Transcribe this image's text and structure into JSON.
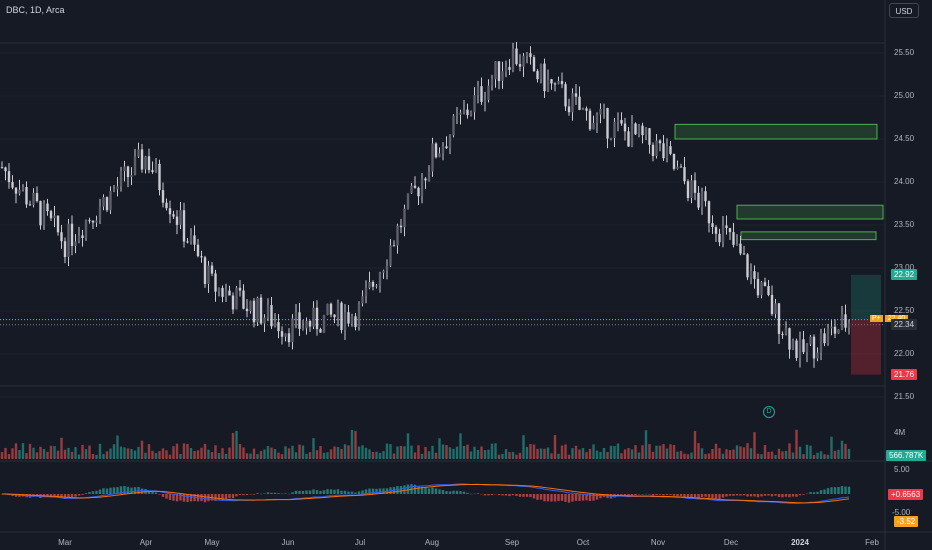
{
  "header": {
    "symbol_label": "DBC, 1D, Arca",
    "currency_button": "USD"
  },
  "price_axis": [
    "25.50",
    "25.00",
    "24.50",
    "24.00",
    "23.50",
    "23.00",
    "22.50",
    "22.00",
    "21.50"
  ],
  "price_tags": {
    "target": "22.92",
    "current": "22.40",
    "current_prefix": "P+",
    "prev": "22.34",
    "stop": "21.76"
  },
  "volume": {
    "axis_label": "4M",
    "value_tag": "566.787K"
  },
  "macd": {
    "axis_top": "5.00",
    "value_tag": "+0.6563",
    "axis_bottom": "-5.00",
    "value_tag2": "-3.52"
  },
  "dividend_marker": "D",
  "time_axis": [
    "Mar",
    "Apr",
    "May",
    "Jun",
    "Jul",
    "Aug",
    "Sep",
    "Oct",
    "Nov",
    "Dec",
    "2024",
    "Feb"
  ],
  "colors": {
    "up": "#26a69a",
    "down": "#ef5350",
    "candle": "#c9cbd1",
    "macd": "#2962ff",
    "signal": "#ff6d00",
    "tag_green": "#22ab94",
    "tag_red": "#f23645",
    "tag_orange": "#f7a21b"
  },
  "chart_data": {
    "type": "candlestick",
    "x": [
      "Mar",
      "Apr",
      "May",
      "Jun",
      "Jul",
      "Aug",
      "Sep",
      "Oct",
      "Nov",
      "Dec",
      "2024",
      "Feb"
    ],
    "ylim": [
      21.5,
      25.5
    ],
    "close_trend": [
      {
        "x": "Mar",
        "y": 23.3
      },
      {
        "x": "Apr",
        "y": 24.3
      },
      {
        "x": "May",
        "y": 22.8
      },
      {
        "x": "Jun",
        "y": 22.3
      },
      {
        "x": "Jul",
        "y": 22.5
      },
      {
        "x": "Aug",
        "y": 24.3
      },
      {
        "x": "Sep",
        "y": 25.5
      },
      {
        "x": "Oct",
        "y": 24.8
      },
      {
        "x": "Nov",
        "y": 24.4
      },
      {
        "x": "Dec",
        "y": 23.3
      },
      {
        "x": "2024",
        "y": 22.0
      }
    ],
    "zones": [
      {
        "from": 24.5,
        "to": 24.67
      },
      {
        "from": 23.57,
        "to": 23.73
      },
      {
        "from": 23.33,
        "to": 23.42
      }
    ],
    "position": {
      "entry": 22.4,
      "target": 22.92,
      "stop": 21.76
    }
  }
}
